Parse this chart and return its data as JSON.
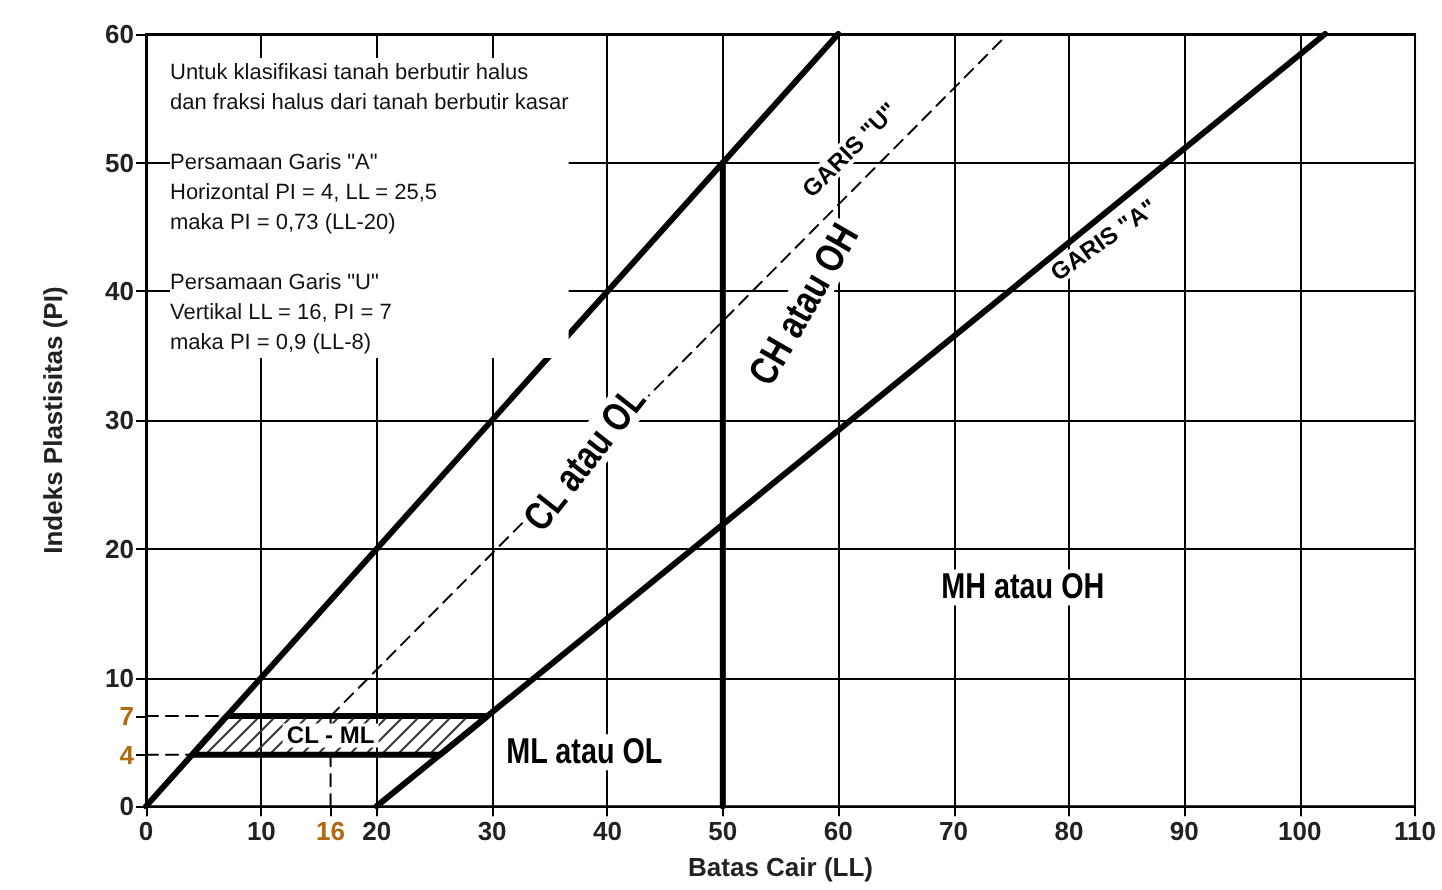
{
  "chart_data": {
    "type": "line",
    "xlabel": "Batas Cair (LL)",
    "ylabel": "Indeks Plastisitas (PI)",
    "xlim": [
      0,
      110
    ],
    "xticks": [
      0,
      10,
      16,
      20,
      30,
      40,
      50,
      60,
      70,
      80,
      90,
      100,
      110
    ],
    "ylim": [
      0,
      60
    ],
    "yticks": [
      0,
      4,
      7,
      10,
      20,
      30,
      40,
      50,
      60
    ],
    "grid": true,
    "marker": "none",
    "series": [
      {
        "color": "#000000",
        "line_style": "solid",
        "x": [
          0,
          60
        ],
        "values": [
          0,
          60
        ]
      },
      {
        "color": "#000000",
        "line_style": "solid",
        "x": [
          20,
          102.2
        ],
        "values": [
          0,
          60
        ]
      },
      {
        "color": "#000000",
        "line_style": "dashed",
        "x": [
          16,
          74.7
        ],
        "values": [
          7,
          60
        ]
      },
      {
        "color": "#000000",
        "line_style": "solid",
        "x": [
          50,
          50
        ],
        "values": [
          0,
          50
        ]
      },
      {
        "type": "area",
        "color": "#000000",
        "line_style": "solid",
        "x": [
          4,
          7,
          29.6,
          25.5
        ],
        "values": [
          4,
          7,
          7,
          4
        ]
      },
      {
        "color": "#000000",
        "line_style": "dashed",
        "x": [
          0,
          7
        ],
        "values": [
          7,
          7
        ]
      },
      {
        "color": "#000000",
        "line_style": "dashed",
        "x": [
          0,
          4
        ],
        "values": [
          4,
          4
        ]
      },
      {
        "color": "#000000",
        "line_style": "dashed",
        "x": [
          16,
          16
        ],
        "values": [
          0,
          7
        ]
      }
    ],
    "annotations": [
      "Untuk klasifikasi tanah berbutir halus\ndan fraksi halus dari tanah berbutir kasar",
      "Persamaan Garis \"A\"\nHorizontal PI = 4, LL = 25,5\nmaka PI = 0,73 (LL-20)",
      "Persamaan Garis \"U\"\nVertikal LL = 16, PI = 7\nmaka PI = 0,9 (LL-8)",
      "GARIS \"U\"",
      "GARIS \"A\"",
      "CH atau OH",
      "CL atau OL",
      "MH atau OH",
      "ML atau OL",
      "CL - ML"
    ]
  }
}
